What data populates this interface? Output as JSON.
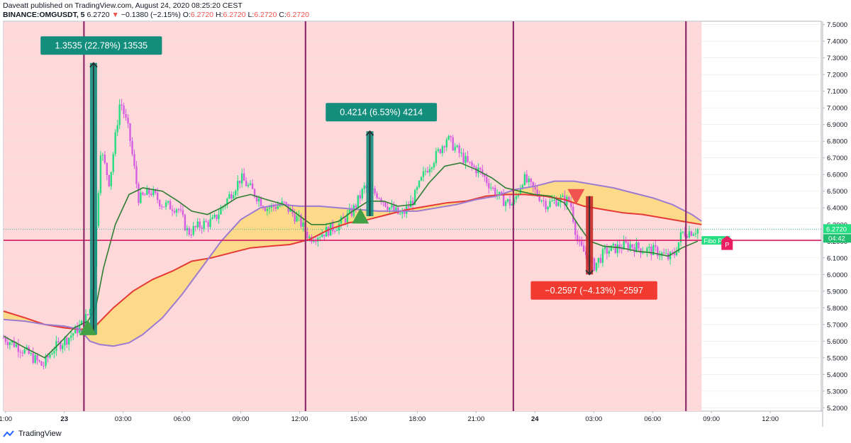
{
  "header": {
    "line1": "Daveatt published on TradingView.com, August 24, 2020 08:25:20 CEST",
    "symbol": "BINANCE:OMGUSDT, 5",
    "last": "6.2720",
    "change": "−0.1380 (−2.15%)",
    "o_label": "O:",
    "o": "6.2720",
    "h_label": "H:",
    "h": "6.2720",
    "l_label": "L:",
    "l": "6.2720",
    "c_label": "C:",
    "c": "6.2720"
  },
  "footer": {
    "brand": "TradingView"
  },
  "colors": {
    "bg_shade": "#ffd9d9",
    "up": "#26de81",
    "down": "#d65ee0",
    "ma_red": "#e53935",
    "ma_purple": "#9c7bd1",
    "ma_green": "#2e7d32",
    "cloud": "#fcd97a",
    "hline": "#d81b60",
    "vline": "#8e2c6b",
    "teal": "#138d7c",
    "red_label": "#f23b30"
  },
  "chart_data": {
    "type": "candlestick",
    "symbol": "OMGUSDT",
    "timeframe": "5",
    "y_ticks": [
      "7.5000",
      "7.4000",
      "7.3000",
      "7.2000",
      "7.1000",
      "7.0000",
      "6.9000",
      "6.8000",
      "6.7000",
      "6.6000",
      "6.5000",
      "6.4000",
      "6.3000",
      "6.2000",
      "6.1000",
      "6.0000",
      "5.9000",
      "5.8000",
      "5.7000",
      "5.6000",
      "5.5000",
      "5.4000",
      "5.3000",
      "5.2000"
    ],
    "ylim": [
      5.18,
      7.52
    ],
    "x_ticks": [
      {
        "label": "1:00",
        "t": 1
      },
      {
        "label": "23",
        "t": 4
      },
      {
        "label": "03:00",
        "t": 7
      },
      {
        "label": "06:00",
        "t": 10
      },
      {
        "label": "09:00",
        "t": 13
      },
      {
        "label": "12:00",
        "t": 16
      },
      {
        "label": "15:00",
        "t": 19
      },
      {
        "label": "18:00",
        "t": 22
      },
      {
        "label": "21:00",
        "t": 25
      },
      {
        "label": "24",
        "t": 28
      },
      {
        "label": "03:00",
        "t": 31
      },
      {
        "label": "06:00",
        "t": 34
      },
      {
        "label": "09:00",
        "t": 37
      },
      {
        "label": "12:00",
        "t": 40
      }
    ],
    "xlim": [
      0.9,
      42.6
    ],
    "price_path": [
      [
        0.9,
        5.62
      ],
      [
        1.5,
        5.58
      ],
      [
        2.2,
        5.52
      ],
      [
        2.9,
        5.45
      ],
      [
        3.4,
        5.55
      ],
      [
        4.2,
        5.62
      ],
      [
        4.9,
        5.7
      ],
      [
        5.3,
        5.78
      ],
      [
        5.55,
        6.1
      ],
      [
        5.85,
        6.75
      ],
      [
        6.3,
        6.55
      ],
      [
        6.85,
        7.05
      ],
      [
        7.3,
        6.85
      ],
      [
        7.8,
        6.45
      ],
      [
        8.4,
        6.5
      ],
      [
        9.0,
        6.42
      ],
      [
        9.8,
        6.4
      ],
      [
        10.3,
        6.25
      ],
      [
        11.0,
        6.3
      ],
      [
        11.6,
        6.32
      ],
      [
        12.3,
        6.45
      ],
      [
        13.0,
        6.58
      ],
      [
        13.6,
        6.5
      ],
      [
        14.3,
        6.4
      ],
      [
        15.2,
        6.42
      ],
      [
        16.0,
        6.32
      ],
      [
        16.5,
        6.22
      ],
      [
        17.2,
        6.25
      ],
      [
        18.0,
        6.3
      ],
      [
        18.7,
        6.38
      ],
      [
        19.3,
        6.52
      ],
      [
        20.0,
        6.48
      ],
      [
        20.6,
        6.4
      ],
      [
        21.2,
        6.35
      ],
      [
        21.8,
        6.45
      ],
      [
        22.4,
        6.62
      ],
      [
        23.0,
        6.72
      ],
      [
        23.5,
        6.82
      ],
      [
        24.0,
        6.75
      ],
      [
        24.6,
        6.66
      ],
      [
        25.2,
        6.62
      ],
      [
        25.8,
        6.52
      ],
      [
        26.3,
        6.45
      ],
      [
        26.9,
        6.42
      ],
      [
        27.4,
        6.58
      ],
      [
        28.0,
        6.5
      ],
      [
        28.6,
        6.42
      ],
      [
        29.2,
        6.45
      ],
      [
        29.8,
        6.44
      ],
      [
        30.2,
        6.18
      ],
      [
        30.6,
        6.12
      ],
      [
        31.0,
        6.05
      ],
      [
        31.6,
        6.14
      ],
      [
        32.2,
        6.16
      ],
      [
        32.8,
        6.18
      ],
      [
        33.5,
        6.15
      ],
      [
        34.2,
        6.14
      ],
      [
        34.8,
        6.1
      ],
      [
        35.1,
        6.12
      ],
      [
        35.5,
        6.25
      ],
      [
        36.0,
        6.26
      ],
      [
        36.3,
        6.272
      ]
    ],
    "series": [
      {
        "name": "",
        "color": "#e53935",
        "points": [
          [
            0.9,
            5.78
          ],
          [
            2,
            5.74
          ],
          [
            3,
            5.7
          ],
          [
            4,
            5.68
          ],
          [
            4.8,
            5.67
          ],
          [
            5.5,
            5.68
          ],
          [
            6.5,
            5.8
          ],
          [
            7.5,
            5.9
          ],
          [
            8.5,
            5.97
          ],
          [
            9.5,
            6.02
          ],
          [
            10.5,
            6.08
          ],
          [
            11.5,
            6.1
          ],
          [
            12.5,
            6.13
          ],
          [
            13.5,
            6.16
          ],
          [
            14.5,
            6.17
          ],
          [
            15.5,
            6.18
          ],
          [
            16.5,
            6.21
          ],
          [
            17.5,
            6.27
          ],
          [
            18.5,
            6.31
          ],
          [
            19.5,
            6.33
          ],
          [
            20.5,
            6.36
          ],
          [
            21.5,
            6.39
          ],
          [
            22.5,
            6.41
          ],
          [
            23.5,
            6.43
          ],
          [
            24.5,
            6.44
          ],
          [
            25.5,
            6.47
          ],
          [
            26.5,
            6.48
          ],
          [
            27.5,
            6.48
          ],
          [
            28.5,
            6.47
          ],
          [
            29.5,
            6.45
          ],
          [
            30.5,
            6.41
          ],
          [
            31.5,
            6.39
          ],
          [
            32.5,
            6.37
          ],
          [
            33.5,
            6.36
          ],
          [
            34.5,
            6.34
          ],
          [
            35.5,
            6.32
          ],
          [
            36.5,
            6.3
          ]
        ]
      },
      {
        "name": "",
        "color": "#9c7bd1",
        "points": [
          [
            0.9,
            5.73
          ],
          [
            2,
            5.72
          ],
          [
            3,
            5.7
          ],
          [
            4,
            5.69
          ],
          [
            4.8,
            5.67
          ],
          [
            5.3,
            5.6
          ],
          [
            5.8,
            5.58
          ],
          [
            6.5,
            5.57
          ],
          [
            7.3,
            5.59
          ],
          [
            8.0,
            5.64
          ],
          [
            9.0,
            5.74
          ],
          [
            10.0,
            5.88
          ],
          [
            11.0,
            6.04
          ],
          [
            12.0,
            6.2
          ],
          [
            13.0,
            6.33
          ],
          [
            14.0,
            6.4
          ],
          [
            15.0,
            6.42
          ],
          [
            16.0,
            6.41
          ],
          [
            17.0,
            6.41
          ],
          [
            18.0,
            6.4
          ],
          [
            19.0,
            6.39
          ],
          [
            20.0,
            6.38
          ],
          [
            21.0,
            6.38
          ],
          [
            22.0,
            6.38
          ],
          [
            23.0,
            6.4
          ],
          [
            24.0,
            6.42
          ],
          [
            25.0,
            6.45
          ],
          [
            26.0,
            6.47
          ],
          [
            27.0,
            6.51
          ],
          [
            28.0,
            6.53
          ],
          [
            29.0,
            6.56
          ],
          [
            30.0,
            6.56
          ],
          [
            31.0,
            6.54
          ],
          [
            32.0,
            6.52
          ],
          [
            33.0,
            6.49
          ],
          [
            34.0,
            6.46
          ],
          [
            35.0,
            6.42
          ],
          [
            36.0,
            6.36
          ],
          [
            36.5,
            6.32
          ]
        ]
      },
      {
        "name": "",
        "color": "#2e7d32",
        "points": [
          [
            0.9,
            5.63
          ],
          [
            2,
            5.56
          ],
          [
            3,
            5.5
          ],
          [
            3.7,
            5.58
          ],
          [
            4.5,
            5.68
          ],
          [
            5.2,
            5.72
          ],
          [
            5.6,
            5.8
          ],
          [
            6.0,
            6.04
          ],
          [
            6.6,
            6.3
          ],
          [
            7.3,
            6.48
          ],
          [
            8.0,
            6.52
          ],
          [
            9.0,
            6.5
          ],
          [
            9.8,
            6.44
          ],
          [
            10.5,
            6.38
          ],
          [
            11.3,
            6.36
          ],
          [
            12.0,
            6.4
          ],
          [
            12.8,
            6.46
          ],
          [
            13.5,
            6.48
          ],
          [
            14.3,
            6.45
          ],
          [
            15.2,
            6.42
          ],
          [
            15.9,
            6.36
          ],
          [
            16.6,
            6.3
          ],
          [
            17.3,
            6.3
          ],
          [
            18.0,
            6.32
          ],
          [
            18.7,
            6.38
          ],
          [
            19.5,
            6.44
          ],
          [
            20.3,
            6.44
          ],
          [
            21.0,
            6.41
          ],
          [
            21.8,
            6.42
          ],
          [
            22.6,
            6.55
          ],
          [
            23.4,
            6.65
          ],
          [
            24.2,
            6.67
          ],
          [
            25.0,
            6.63
          ],
          [
            25.8,
            6.58
          ],
          [
            26.5,
            6.52
          ],
          [
            27.2,
            6.5
          ],
          [
            28.0,
            6.48
          ],
          [
            28.8,
            6.47
          ],
          [
            29.5,
            6.43
          ],
          [
            30.2,
            6.3
          ],
          [
            30.8,
            6.2
          ],
          [
            31.5,
            6.17
          ],
          [
            32.4,
            6.16
          ],
          [
            33.2,
            6.14
          ],
          [
            34.0,
            6.13
          ],
          [
            34.8,
            6.11
          ],
          [
            35.5,
            6.16
          ],
          [
            36.3,
            6.2
          ]
        ]
      }
    ],
    "current_price": {
      "value": 6.272,
      "label": "6.2720"
    },
    "horizontal_line": {
      "value": 6.205
    },
    "countdown": "04:42",
    "vertical_lines": [
      5.0,
      16.3,
      26.9,
      35.7
    ],
    "shaded_x_range": [
      0.9,
      36.5
    ],
    "trades": [
      {
        "direction": "long",
        "entry_t": 5.2,
        "entry": 5.64,
        "exit": 7.27,
        "label": "1.3535 (22.78%) 13535",
        "label_t": 5.5,
        "label_y": 7.37
      },
      {
        "direction": "long",
        "entry_t": 19.4,
        "entry": 6.35,
        "exit": 6.86,
        "label": "0.4214 (6.53%) 4214",
        "label_t": 19.5,
        "label_y": 6.97
      },
      {
        "direction": "short",
        "entry_t": 30.6,
        "entry": 6.47,
        "exit": 6.0,
        "label": "−0.2597 (−4.13%) −2597",
        "label_t": 30.5,
        "label_y": 5.9
      }
    ],
    "markers": [
      {
        "type": "triangle-up",
        "t": 5.2,
        "y": 5.67,
        "color": "#43a047"
      },
      {
        "type": "triangle-up",
        "t": 19.1,
        "y": 6.34,
        "color": "#43a047"
      },
      {
        "type": "triangle-down",
        "t": 30.1,
        "y": 6.47,
        "color": "#ef5350"
      }
    ],
    "tags": [
      {
        "text": "Fibo Piv",
        "t": 36.5,
        "y": 6.205,
        "color": "#26de81"
      },
      {
        "text": "P",
        "t": 37.8,
        "y": 6.19,
        "color": "#e91e63"
      }
    ]
  }
}
